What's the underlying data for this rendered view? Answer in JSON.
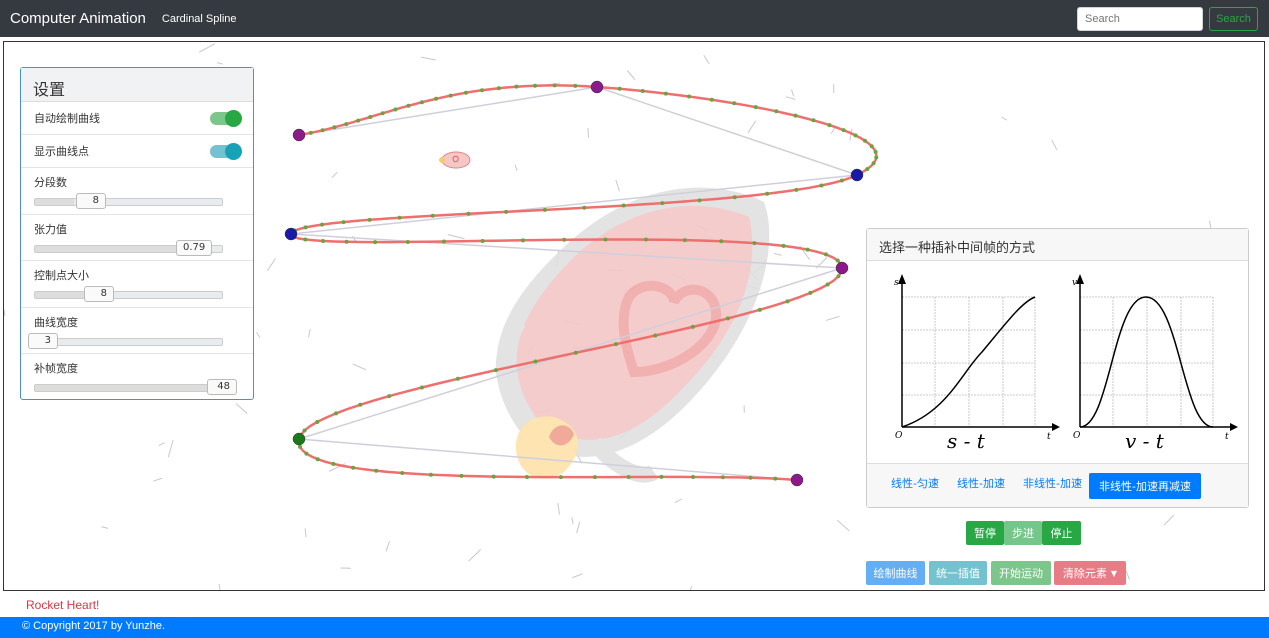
{
  "navbar": {
    "brand": "Computer Animation",
    "link": "Cardinal Spline",
    "search_placeholder": "Search",
    "search_button": "Search"
  },
  "settings": {
    "title": "设置",
    "toggles": [
      {
        "label": "自动绘制曲线",
        "on": true,
        "color": "#28a745"
      },
      {
        "label": "显示曲线点",
        "on": true,
        "color": "#17a2b8"
      }
    ],
    "sliders": [
      {
        "label": "分段数",
        "value": "8",
        "fraction": 0.21
      },
      {
        "label": "张力值",
        "value": "0.79",
        "fraction": 0.79
      },
      {
        "label": "控制点大小",
        "value": "8",
        "fraction": 0.35
      },
      {
        "label": "曲线宽度",
        "value": "3",
        "fraction": 0.03
      },
      {
        "label": "补帧宽度",
        "value": "48",
        "fraction": 0.96
      }
    ]
  },
  "interp": {
    "title": "选择一种插补中间帧的方式",
    "tabs": [
      "线性-匀速",
      "线性-加速",
      "非线性-加速",
      "非线性-加速再减速"
    ],
    "active_tab": 3,
    "chart_left": {
      "y_axis": "s",
      "x_axis": "t",
      "origin": "O",
      "tick": "1",
      "caption": "s - t"
    },
    "chart_right": {
      "y_axis": "v",
      "x_axis": "t",
      "origin": "O",
      "tick": "1",
      "caption": "v - t"
    }
  },
  "controls": {
    "pause": "暂停",
    "step": "步进",
    "stop": "停止"
  },
  "actions": {
    "draw": "绘制曲线",
    "interp": "统一插值",
    "start": "开始运动",
    "clear": "清除元素"
  },
  "colors": {
    "curve": "#ef6e6e",
    "dots": "#6ba33e",
    "green": "#28a745",
    "blue": "#007bff",
    "teal": "#17a2b8",
    "red": "#dc3545"
  },
  "footer": {
    "rocket": "Rocket Heart!",
    "copyright": "© Copyright 2017 by Yunzhe."
  }
}
